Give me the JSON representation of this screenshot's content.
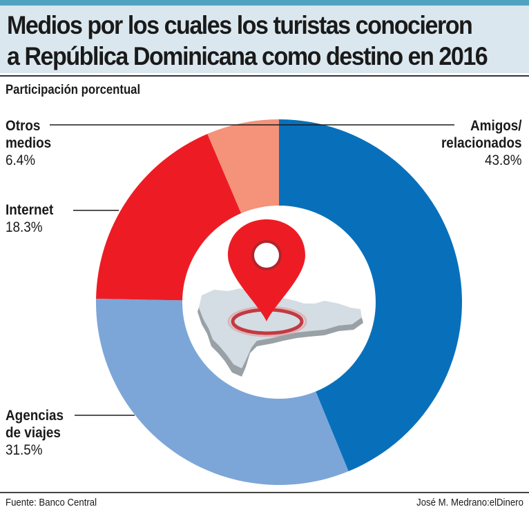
{
  "header": {
    "title_line1": "Medios por los cuales los turistas conocieron",
    "title_line2": "a República Dominicana como destino en 2016",
    "subtitle": "Participación porcentual"
  },
  "footer": {
    "source": "Fuente: Banco Central",
    "credit": "José M. Medrano:elDinero"
  },
  "chart_data": {
    "type": "pie",
    "variant": "donut",
    "title": "Medios por los cuales los turistas conocieron a República Dominicana como destino en 2016",
    "subtitle": "Participación porcentual",
    "unit": "%",
    "start": "12 o'clock, clockwise",
    "slices": [
      {
        "label_line1": "Amigos/",
        "label_line2": "relacionados",
        "value": 43.8,
        "value_label": "43.8%",
        "color": "#0870ba"
      },
      {
        "label_line1": "Agencias",
        "label_line2": "de viajes",
        "value": 31.5,
        "value_label": "31.5%",
        "color": "#7ca6d8"
      },
      {
        "label_line1": "Internet",
        "label_line2": "",
        "value": 18.3,
        "value_label": "18.3%",
        "color": "#ed1c24"
      },
      {
        "label_line1": "Otros",
        "label_line2": "medios",
        "value": 6.4,
        "value_label": "6.4%",
        "color": "#f4927a"
      }
    ],
    "center_icon": "location-pin-over-dominican-republic-map",
    "source": "Fuente: Banco Central"
  },
  "colors": {
    "top_bar": "#4fa3c0",
    "title_background": "#dbe7ee",
    "pin_red": "#ed1c24",
    "map_grey": "#d3dde3"
  }
}
